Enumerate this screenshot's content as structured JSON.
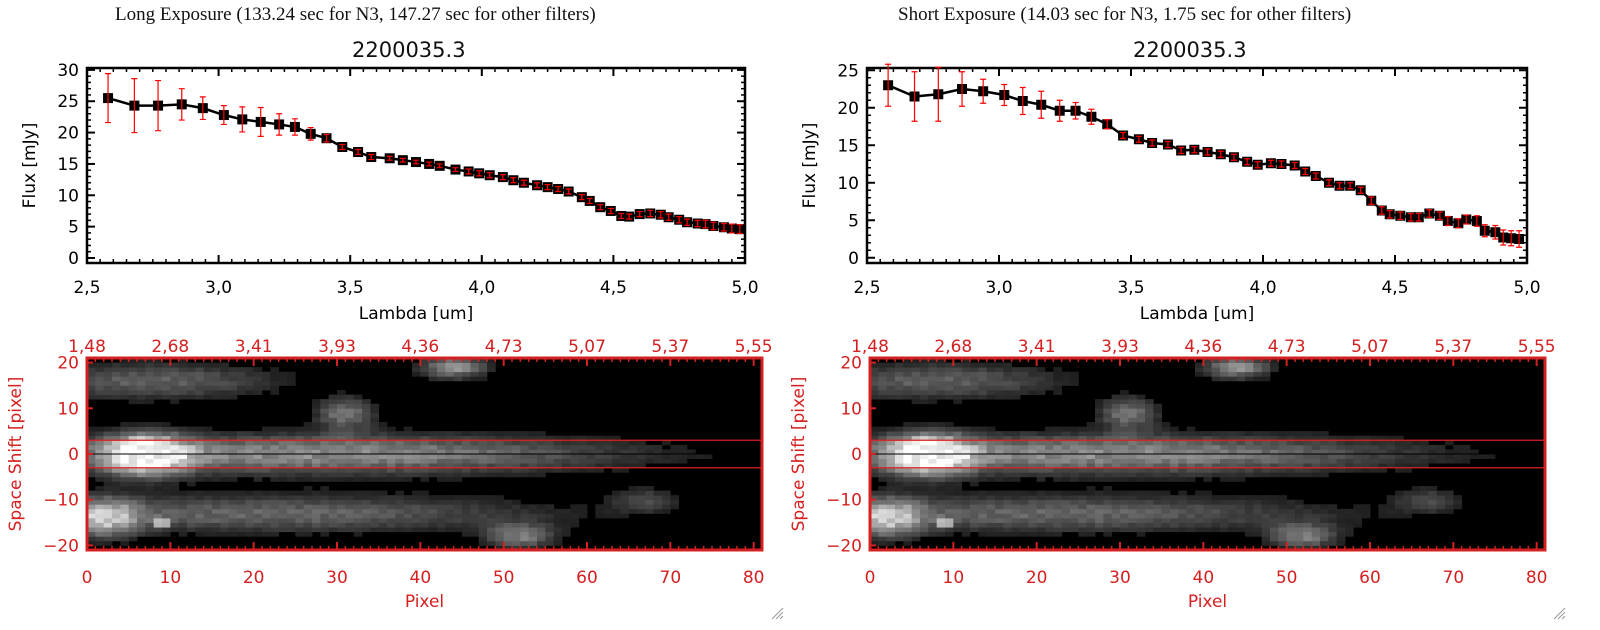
{
  "panels": [
    {
      "header": "Long Exposure (133.24 sec for N3, 147.27 sec for other filters)",
      "title": "2200035.3"
    },
    {
      "header": "Short Exposure (14.03 sec for N3, 1.75 sec for other filters)",
      "title": "2200035.3"
    }
  ],
  "chart_data": [
    {
      "type": "line",
      "title": "2200035.3",
      "xlabel": "Lambda [um]",
      "ylabel": "Flux [mJy]",
      "xlim": [
        2.5,
        5.0
      ],
      "ylim": [
        -0.8,
        30.3
      ],
      "xticks": [
        "2.5",
        "3.0",
        "3.5",
        "4.0",
        "4.5",
        "5.0"
      ],
      "yticks": [
        "0",
        "5",
        "10",
        "15",
        "20",
        "25",
        "30"
      ],
      "line_color": "#000000",
      "error_color": "#ff0000",
      "x": [
        2.58,
        2.68,
        2.77,
        2.86,
        2.94,
        3.02,
        3.09,
        3.16,
        3.23,
        3.29,
        3.35,
        3.41,
        3.47,
        3.53,
        3.58,
        3.65,
        3.7,
        3.75,
        3.8,
        3.84,
        3.9,
        3.95,
        3.99,
        4.03,
        4.08,
        4.12,
        4.16,
        4.21,
        4.25,
        4.29,
        4.33,
        4.38,
        4.41,
        4.45,
        4.49,
        4.53,
        4.56,
        4.6,
        4.64,
        4.68,
        4.71,
        4.75,
        4.78,
        4.82,
        4.85,
        4.88,
        4.92,
        4.95,
        4.98
      ],
      "y": [
        25.5,
        24.3,
        24.3,
        24.5,
        23.9,
        22.8,
        22.1,
        21.7,
        21.3,
        20.9,
        19.8,
        19.1,
        17.7,
        16.9,
        16.1,
        15.9,
        15.6,
        15.3,
        15.0,
        14.7,
        14.1,
        13.8,
        13.5,
        13.2,
        12.9,
        12.4,
        12.0,
        11.6,
        11.3,
        11.0,
        10.6,
        9.7,
        9.1,
        8.1,
        7.5,
        6.7,
        6.6,
        7.0,
        7.1,
        6.9,
        6.5,
        6.1,
        5.7,
        5.5,
        5.4,
        5.1,
        4.9,
        4.7,
        4.6
      ],
      "yerr": [
        3.9,
        4.3,
        4.0,
        2.5,
        1.8,
        1.5,
        2.0,
        2.3,
        1.7,
        1.3,
        1.0,
        0.6,
        0.4,
        0.4,
        0.4,
        0.3,
        0.3,
        0.3,
        0.3,
        0.3,
        0.3,
        0.4,
        0.4,
        0.4,
        0.4,
        0.4,
        0.4,
        0.4,
        0.4,
        0.4,
        0.4,
        0.4,
        0.4,
        0.4,
        0.4,
        0.4,
        0.4,
        0.4,
        0.5,
        0.5,
        0.5,
        0.5,
        0.5,
        0.5,
        0.6,
        0.6,
        0.6,
        0.7,
        0.7
      ]
    },
    {
      "type": "line",
      "title": "2200035.3",
      "xlabel": "Lambda [um]",
      "ylabel": "Flux [mJy]",
      "xlim": [
        2.5,
        5.0
      ],
      "ylim": [
        -0.7,
        25.3
      ],
      "xticks": [
        "2.5",
        "3.0",
        "3.5",
        "4.0",
        "4.5",
        "5.0"
      ],
      "yticks": [
        "0",
        "5",
        "10",
        "15",
        "20",
        "25"
      ],
      "line_color": "#000000",
      "error_color": "#ff0000",
      "x": [
        2.58,
        2.68,
        2.77,
        2.86,
        2.94,
        3.02,
        3.09,
        3.16,
        3.23,
        3.29,
        3.35,
        3.41,
        3.47,
        3.53,
        3.58,
        3.64,
        3.69,
        3.74,
        3.79,
        3.84,
        3.89,
        3.94,
        3.98,
        4.03,
        4.07,
        4.12,
        4.16,
        4.2,
        4.25,
        4.29,
        4.33,
        4.37,
        4.41,
        4.45,
        4.48,
        4.52,
        4.56,
        4.59,
        4.63,
        4.67,
        4.7,
        4.74,
        4.77,
        4.81,
        4.84,
        4.88,
        4.91,
        4.94,
        4.97
      ],
      "y": [
        23.0,
        21.5,
        21.8,
        22.5,
        22.2,
        21.7,
        20.9,
        20.4,
        19.6,
        19.6,
        18.8,
        17.8,
        16.3,
        15.8,
        15.3,
        15.1,
        14.3,
        14.4,
        14.1,
        13.8,
        13.4,
        12.8,
        12.4,
        12.6,
        12.5,
        12.3,
        11.5,
        10.9,
        10.0,
        9.6,
        9.6,
        9.0,
        7.6,
        6.3,
        5.8,
        5.6,
        5.4,
        5.4,
        5.9,
        5.6,
        4.9,
        4.6,
        5.1,
        4.9,
        3.6,
        3.4,
        2.7,
        2.6,
        2.5
      ],
      "yerr": [
        2.8,
        3.3,
        3.6,
        2.3,
        1.6,
        1.4,
        1.8,
        1.8,
        1.4,
        1.1,
        1.0,
        0.6,
        0.4,
        0.4,
        0.4,
        0.4,
        0.4,
        0.4,
        0.4,
        0.4,
        0.4,
        0.4,
        0.4,
        0.4,
        0.4,
        0.4,
        0.4,
        0.4,
        0.4,
        0.4,
        0.4,
        0.4,
        0.5,
        0.5,
        0.5,
        0.5,
        0.5,
        0.5,
        0.5,
        0.5,
        0.6,
        0.6,
        0.6,
        0.7,
        0.8,
        0.9,
        1.0,
        1.0,
        1.1
      ]
    },
    {
      "type": "heatmap",
      "xlabel": "Pixel",
      "ylabel": "Space Shift [pixel]",
      "xlim": [
        0,
        81
      ],
      "ylim": [
        -21,
        21
      ],
      "xticks": [
        "0",
        "10",
        "20",
        "30",
        "40",
        "50",
        "60",
        "70",
        "80"
      ],
      "yticks": [
        "-20",
        "-10",
        "0",
        "10",
        "20"
      ],
      "top_xticks": [
        "1.48",
        "2.68",
        "3.41",
        "3.93",
        "4.36",
        "4.73",
        "5.07",
        "5.37",
        "5.55"
      ],
      "axis_color": "#d42020",
      "aperture_lines": [
        3,
        -3
      ],
      "colormap": "grayscale",
      "blobs": [
        {
          "pixel": 7,
          "shift": 0,
          "width": 3.5,
          "height": 3,
          "intensity": 1.0
        },
        {
          "pixel": 28,
          "shift": 0,
          "width": 26,
          "height": 3.2,
          "intensity": 0.55
        },
        {
          "pixel": 8,
          "shift": 16,
          "width": 11,
          "height": 3,
          "intensity": 0.38
        },
        {
          "pixel": 44,
          "shift": 19,
          "width": 3,
          "height": 1.8,
          "intensity": 0.55
        },
        {
          "pixel": 31,
          "shift": 9,
          "width": 2.5,
          "height": 2.5,
          "intensity": 0.45
        },
        {
          "pixel": 22,
          "shift": -13,
          "width": 24,
          "height": 3,
          "intensity": 0.4
        },
        {
          "pixel": 2,
          "shift": -14,
          "width": 3,
          "height": 3,
          "intensity": 0.6
        },
        {
          "pixel": 52,
          "shift": -18,
          "width": 3,
          "height": 2,
          "intensity": 0.45
        },
        {
          "pixel": 9,
          "shift": -15,
          "width": 0.5,
          "height": 0.6,
          "intensity": 0.85
        },
        {
          "pixel": 67,
          "shift": -10,
          "width": 3,
          "height": 2,
          "intensity": 0.25
        }
      ]
    }
  ]
}
